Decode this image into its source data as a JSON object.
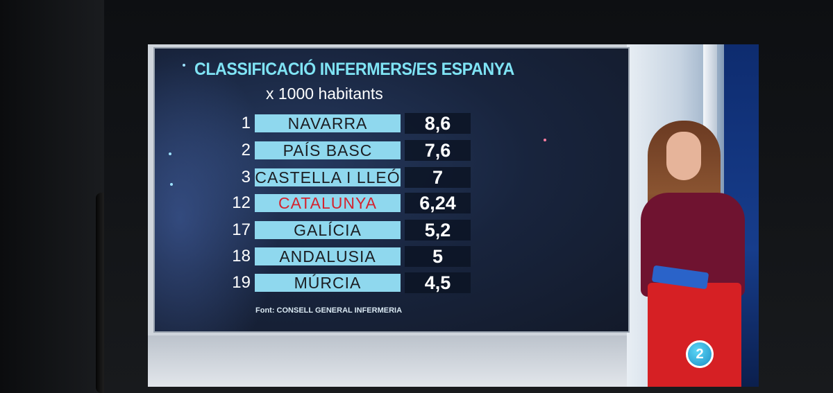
{
  "graphic": {
    "title": "CLASSIFICACIÓ INFERMERS/ES ESPANYA",
    "subtitle": "x 1000 habitants",
    "source": "Font: CONSELL GENERAL INFERMERIA"
  },
  "ranking": [
    {
      "rank": "1",
      "region": "NAVARRA",
      "value": "8,6"
    },
    {
      "rank": "2",
      "region": "PAÍS BASC",
      "value": "7,6"
    },
    {
      "rank": "3",
      "region": "CASTELLA I LLEÓ",
      "value": "7"
    },
    {
      "rank": "12",
      "region": "CATALUNYA",
      "value": "6,24"
    },
    {
      "rank": "17",
      "region": "GALÍCIA",
      "value": "5,2"
    },
    {
      "rank": "18",
      "region": "ANDALUSIA",
      "value": "5"
    },
    {
      "rank": "19",
      "region": "MÚRCIA",
      "value": "4,5"
    }
  ],
  "channel_logo": "2",
  "colors": {
    "title": "#7fe3f4",
    "bar": "#8fd8ee",
    "highlight_text": "#d4232f",
    "panel_bg": "#18243d"
  }
}
